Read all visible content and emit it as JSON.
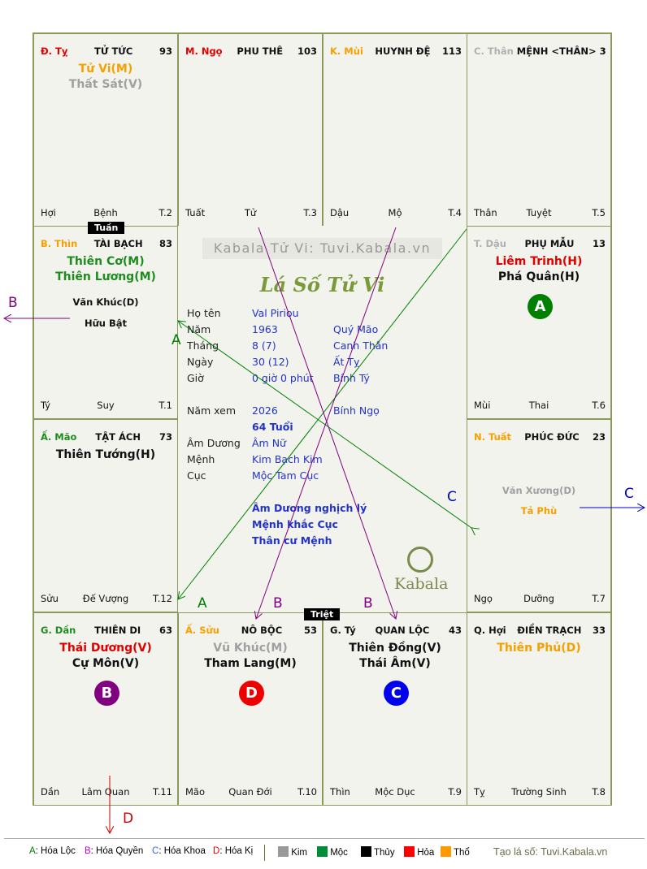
{
  "palaces": [
    {
      "branch": "Đ. Tỵ",
      "branch_color": "#e00000",
      "name": "TỬ TỨC",
      "num": "93",
      "stars": [
        {
          "t": "Tử Vi(M)",
          "c": "#f5a000"
        },
        {
          "t": "Thất Sát(V)",
          "c": "#a0a0a0"
        }
      ],
      "minor": [],
      "foot": [
        "Hợi",
        "Bệnh",
        "T.2"
      ]
    },
    {
      "branch": "M. Ngọ",
      "branch_color": "#e00000",
      "name": "PHU THÊ",
      "num": "103",
      "stars": [],
      "minor": [],
      "foot": [
        "Tuất",
        "Tử",
        "T.3"
      ]
    },
    {
      "branch": "K. Mùi",
      "branch_color": "#f5a000",
      "name": "HUYNH ĐỆ",
      "num": "113",
      "stars": [],
      "minor": [],
      "foot": [
        "Dậu",
        "Mộ",
        "T.4"
      ]
    },
    {
      "branch": "C. Thân",
      "branch_color": "#b0b0b0",
      "name": "MỆNH <THÂN>",
      "num": "3",
      "stars": [],
      "minor": [],
      "foot": [
        "Thân",
        "Tuyệt",
        "T.5"
      ]
    },
    {
      "branch": "B. Thìn",
      "branch_color": "#f5a000",
      "name": "TÀI BẠCH",
      "num": "83",
      "stars": [
        {
          "t": "Thiên Cơ(M)",
          "c": "#1e8c1e"
        },
        {
          "t": "Thiên Lương(M)",
          "c": "#1e8c1e"
        }
      ],
      "minor": [
        {
          "t": "Văn Khúc(D)",
          "c": "#111"
        },
        {
          "t": "Hữu Bật",
          "c": "#111"
        }
      ],
      "foot": [
        "Tý",
        "Suy",
        "T.1"
      ]
    },
    {
      "branch": "T. Dậu",
      "branch_color": "#b0b0b0",
      "name": "PHỤ MẪU",
      "num": "13",
      "stars": [
        {
          "t": "Liêm Trinh(H)",
          "c": "#e00000"
        },
        {
          "t": "Phá Quân(H)",
          "c": "#111"
        }
      ],
      "minor": [],
      "foot": [
        "Mùi",
        "Thai",
        "T.6"
      ],
      "badge": {
        "t": "A",
        "c": "#008000"
      }
    },
    {
      "branch": "Ấ. Mão",
      "branch_color": "#1e8c1e",
      "name": "TẬT ÁCH",
      "num": "73",
      "stars": [
        {
          "t": "Thiên Tướng(H)",
          "c": "#111"
        }
      ],
      "minor": [],
      "foot": [
        "Sửu",
        "Đế Vượng",
        "T.12"
      ]
    },
    {
      "branch": "N. Tuất",
      "branch_color": "#f5a000",
      "name": "PHÚC ĐỨC",
      "num": "23",
      "stars": [],
      "minor": [
        {
          "t": "Văn Xương(D)",
          "c": "#a0a0a0"
        },
        {
          "t": "Tả Phù",
          "c": "#f5a000"
        }
      ],
      "foot": [
        "Ngọ",
        "Dưỡng",
        "T.7"
      ]
    },
    {
      "branch": "G. Dần",
      "branch_color": "#1e8c1e",
      "name": "THIÊN DI",
      "num": "63",
      "stars": [
        {
          "t": "Thái Dương(V)",
          "c": "#e00000"
        },
        {
          "t": "Cự Môn(V)",
          "c": "#111"
        }
      ],
      "minor": [],
      "foot": [
        "Dần",
        "Lâm Quan",
        "T.11"
      ],
      "badge": {
        "t": "B",
        "c": "#800080"
      }
    },
    {
      "branch": "Ấ. Sửu",
      "branch_color": "#f5a000",
      "name": "NÔ BỘC",
      "num": "53",
      "stars": [
        {
          "t": "Vũ Khúc(M)",
          "c": "#a0a0a0"
        },
        {
          "t": "Tham Lang(M)",
          "c": "#111"
        }
      ],
      "minor": [],
      "foot": [
        "Mão",
        "Quan Đới",
        "T.10"
      ],
      "badge": {
        "t": "D",
        "c": "#ee0000"
      }
    },
    {
      "branch": "G. Tý",
      "branch_color": "#111",
      "name": "QUAN LỘC",
      "num": "43",
      "stars": [
        {
          "t": "Thiên Đồng(V)",
          "c": "#111"
        },
        {
          "t": "Thái Âm(V)",
          "c": "#111"
        }
      ],
      "minor": [],
      "foot": [
        "Thìn",
        "Mộc Dục",
        "T.9"
      ],
      "badge": {
        "t": "C",
        "c": "#0000ee"
      }
    },
    {
      "branch": "Q. Hợi",
      "branch_color": "#111",
      "name": "ĐIỀN TRẠCH",
      "num": "33",
      "stars": [
        {
          "t": "Thiên Phủ(D)",
          "c": "#f5a000"
        }
      ],
      "minor": [],
      "foot": [
        "Tỵ",
        "Trường Sinh",
        "T.8"
      ]
    }
  ],
  "tags": {
    "tuan": "Tuần",
    "triet": "Triệt"
  },
  "center": {
    "banner": "Kabala Tử Vi: Tuvi.Kabala.vn",
    "title": "Lá Số Tử Vi",
    "brand": "Kabala",
    "rows": [
      {
        "label": "Họ tên",
        "value": "Val Piriou",
        "extra": ""
      },
      {
        "label": "Năm",
        "value": "1963",
        "extra": "Quý Mão"
      },
      {
        "label": "Tháng",
        "value": "8  (7)",
        "extra": "Canh Thân"
      },
      {
        "label": "Ngày",
        "value": "30  (12)",
        "extra": "Ất Tỵ"
      },
      {
        "label": "Giờ",
        "value": "0 giờ 0 phút",
        "extra": "Bính Tý"
      },
      {
        "label": "Năm xem",
        "value": "2026",
        "extra": "Bính Ngọ"
      },
      {
        "label": "",
        "value": "64 Tuổi",
        "extra": ""
      },
      {
        "label": "Âm Dương",
        "value": "Âm Nữ",
        "extra": ""
      },
      {
        "label": "Mệnh",
        "value": "Kim Bạch Kim",
        "extra": ""
      },
      {
        "label": "Cục",
        "value": "Mộc Tam Cục",
        "extra": ""
      }
    ],
    "notes": [
      "Âm Dương nghịch lý",
      "Mệnh khắc Cục",
      "Thân cư Mệnh"
    ]
  },
  "arrow_labels": {
    "a1": "A",
    "a2": "A",
    "b1": "B",
    "b2": "B",
    "b3": "B",
    "c1": "C",
    "c2": "C",
    "d1": "D"
  },
  "legend": {
    "hoa": [
      {
        "k": "A",
        "t": ": Hóa Lộc",
        "c": "#008000"
      },
      {
        "k": "B",
        "t": ": Hóa Quyền",
        "c": "#cc00cc"
      },
      {
        "k": "C",
        "t": ": Hóa Khoa",
        "c": "#3366ff"
      },
      {
        "k": "D",
        "t": ": Hóa Kị",
        "c": "#ee0000"
      }
    ],
    "elements": [
      {
        "t": "Kim",
        "c": "#999999"
      },
      {
        "t": "Mộc",
        "c": "#008c3a"
      },
      {
        "t": "Thủy",
        "c": "#000000"
      },
      {
        "t": "Hỏa",
        "c": "#ff0000"
      },
      {
        "t": "Thổ",
        "c": "#ff9900"
      }
    ],
    "credit": "Tạo lá số: Tuvi.Kabala.vn"
  }
}
